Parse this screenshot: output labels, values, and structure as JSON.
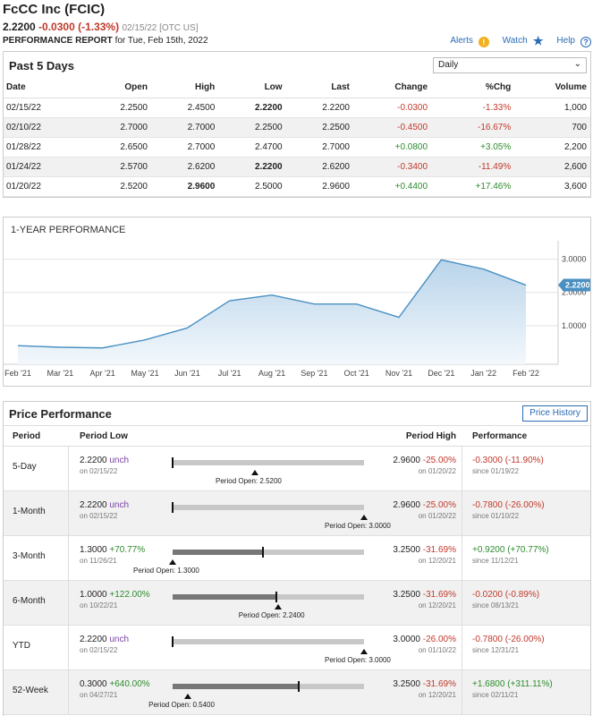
{
  "header": {
    "title": "FcCC Inc (FCIC)",
    "price": "2.2200",
    "change": "-0.0300 (-1.33%)",
    "date": "02/15/22 [OTC US]",
    "report_label": "PERFORMANCE REPORT",
    "report_date": " for Tue, Feb 15th, 2022",
    "alerts": "Alerts",
    "watch": "Watch",
    "help": "Help"
  },
  "past5": {
    "title": "Past 5 Days",
    "select_value": "Daily",
    "columns": [
      "Date",
      "Open",
      "High",
      "Low",
      "Last",
      "Change",
      "%Chg",
      "Volume"
    ],
    "rows": [
      {
        "date": "02/15/22",
        "open": "2.2500",
        "high": "2.4500",
        "low": "2.2200",
        "last": "2.2200",
        "change": "-0.0300",
        "pct": "-1.33%",
        "volume": "1,000",
        "low_bold": true,
        "high_bold": false,
        "dir": "neg"
      },
      {
        "date": "02/10/22",
        "open": "2.7000",
        "high": "2.7000",
        "low": "2.2500",
        "last": "2.2500",
        "change": "-0.4500",
        "pct": "-16.67%",
        "volume": "700",
        "low_bold": false,
        "high_bold": false,
        "dir": "neg"
      },
      {
        "date": "01/28/22",
        "open": "2.6500",
        "high": "2.7000",
        "low": "2.4700",
        "last": "2.7000",
        "change": "+0.0800",
        "pct": "+3.05%",
        "volume": "2,200",
        "low_bold": false,
        "high_bold": false,
        "dir": "pos"
      },
      {
        "date": "01/24/22",
        "open": "2.5700",
        "high": "2.6200",
        "low": "2.2200",
        "last": "2.6200",
        "change": "-0.3400",
        "pct": "-11.49%",
        "volume": "2,600",
        "low_bold": true,
        "high_bold": false,
        "dir": "neg"
      },
      {
        "date": "01/20/22",
        "open": "2.5200",
        "high": "2.9600",
        "low": "2.5000",
        "last": "2.9600",
        "change": "+0.4400",
        "pct": "+17.46%",
        "volume": "3,600",
        "low_bold": false,
        "high_bold": true,
        "dir": "pos"
      }
    ]
  },
  "chart_data": {
    "type": "area",
    "title": "1-YEAR PERFORMANCE",
    "categories": [
      "Feb '21",
      "Mar '21",
      "Apr '21",
      "May '21",
      "Jun '21",
      "Jul '21",
      "Aug '21",
      "Sep '21",
      "Oct '21",
      "Nov '21",
      "Dec '21",
      "Jan '22",
      "Feb '22"
    ],
    "series": [
      {
        "values": [
          0.4,
          0.35,
          0.33,
          0.57,
          0.93,
          1.75,
          1.92,
          1.65,
          1.65,
          1.25,
          2.98,
          2.7,
          2.22
        ]
      }
    ],
    "yticks": [
      "1.0000",
      "2.0000",
      "3.0000"
    ],
    "ylim": [
      0,
      3.5
    ],
    "last_label": "2.2200",
    "color": "#4a90c2"
  },
  "price_perf": {
    "title": "Price Performance",
    "button": "Price History",
    "headers": {
      "period": "Period",
      "low": "Period Low",
      "high": "Period High",
      "perf": "Performance"
    },
    "open_prefix": "Period Open: ",
    "rows": [
      {
        "period": "5-Day",
        "low": "2.2200",
        "low_chg": "unch",
        "low_cls": "unch",
        "low_date": "on 02/15/22",
        "high": "2.9600",
        "high_chg": "-25.00%",
        "high_date": "on 01/20/22",
        "perf": "-0.3000 (-11.90%)",
        "perf_cls": "neg",
        "since": "since 01/19/22",
        "open": "2.5200",
        "fill": 0,
        "marker": 0,
        "open_pos": 0.43
      },
      {
        "period": "1-Month",
        "low": "2.2200",
        "low_chg": "unch",
        "low_cls": "unch",
        "low_date": "on 02/15/22",
        "high": "2.9600",
        "high_chg": "-25.00%",
        "high_date": "on 01/20/22",
        "perf": "-0.7800 (-26.00%)",
        "perf_cls": "neg",
        "since": "since 01/10/22",
        "open": "3.0000",
        "fill": 0,
        "marker": 0,
        "open_pos": 1.0
      },
      {
        "period": "3-Month",
        "low": "1.3000",
        "low_chg": "+70.77%",
        "low_cls": "pos",
        "low_date": "on 11/26/21",
        "high": "3.2500",
        "high_chg": "-31.69%",
        "high_date": "on 12/20/21",
        "perf": "+0.9200 (+70.77%)",
        "perf_cls": "pos",
        "since": "since 11/12/21",
        "open": "1.3000",
        "fill": 0.47,
        "marker": 0.47,
        "open_pos": 0.0
      },
      {
        "period": "6-Month",
        "low": "1.0000",
        "low_chg": "+122.00%",
        "low_cls": "pos",
        "low_date": "on 10/22/21",
        "high": "3.2500",
        "high_chg": "-31.69%",
        "high_date": "on 12/20/21",
        "perf": "-0.0200 (-0.89%)",
        "perf_cls": "neg",
        "since": "since 08/13/21",
        "open": "2.2400",
        "fill": 0.54,
        "marker": 0.54,
        "open_pos": 0.55
      },
      {
        "period": "YTD",
        "low": "2.2200",
        "low_chg": "unch",
        "low_cls": "unch",
        "low_date": "on 02/15/22",
        "high": "3.0000",
        "high_chg": "-26.00%",
        "high_date": "on 01/10/22",
        "perf": "-0.7800 (-26.00%)",
        "perf_cls": "neg",
        "since": "since 12/31/21",
        "open": "3.0000",
        "fill": 0,
        "marker": 0,
        "open_pos": 1.0
      },
      {
        "period": "52-Week",
        "low": "0.3000",
        "low_chg": "+640.00%",
        "low_cls": "pos",
        "low_date": "on 04/27/21",
        "high": "3.2500",
        "high_chg": "-31.69%",
        "high_date": "on 12/20/21",
        "perf": "+1.6800 (+311.11%)",
        "perf_cls": "pos",
        "since": "since 02/11/21",
        "open": "0.5400",
        "fill": 0.66,
        "marker": 0.66,
        "open_pos": 0.08
      }
    ]
  }
}
